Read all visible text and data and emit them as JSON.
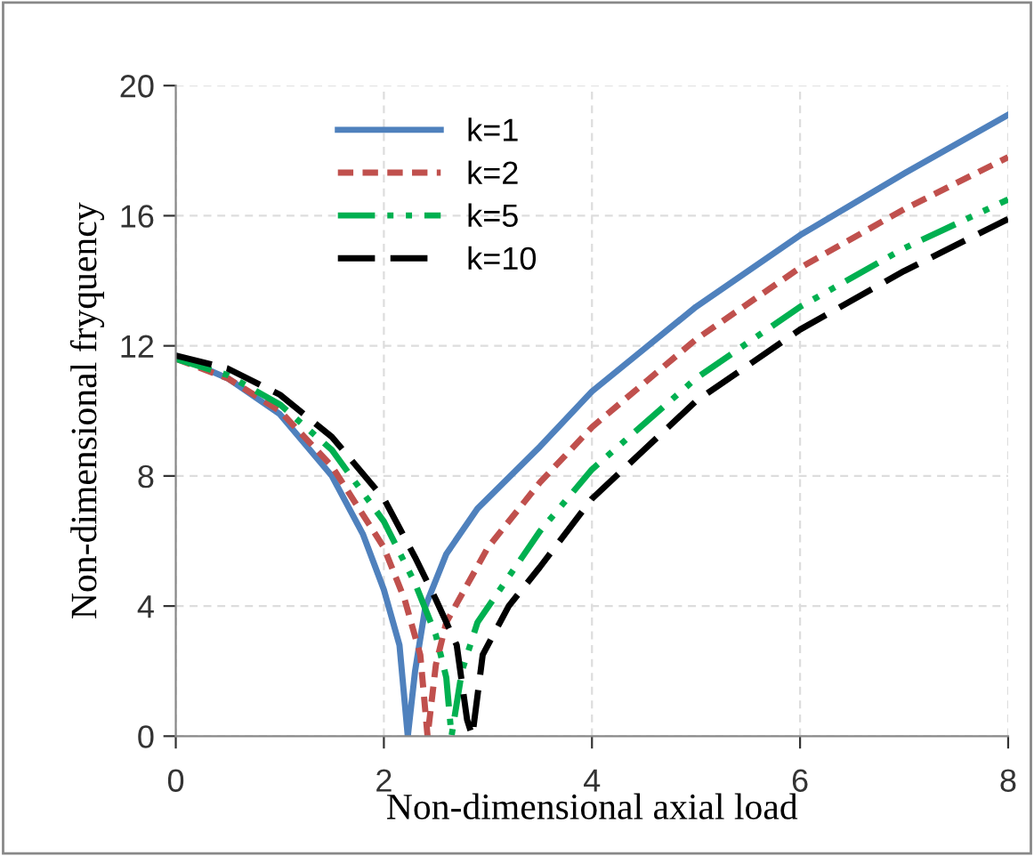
{
  "chart_data": {
    "type": "line",
    "xlabel": "Non-dimensional axial load",
    "ylabel": "Non-dimensional fryquency",
    "xlim": [
      0,
      8
    ],
    "ylim": [
      0,
      20
    ],
    "xticks": [
      0,
      2,
      4,
      6,
      8
    ],
    "yticks": [
      0,
      4,
      8,
      12,
      16,
      20
    ],
    "grid": true,
    "legend": "top left",
    "series": [
      {
        "name": "k=1",
        "color": "#4f81bd",
        "line_style": "solid",
        "x": [
          0,
          0.5,
          1,
          1.5,
          1.8,
          2.0,
          2.15,
          2.23,
          2.3,
          2.4,
          2.6,
          2.9,
          3.5,
          4,
          5,
          6,
          7,
          8
        ],
        "values": [
          11.7,
          11.0,
          9.9,
          8.0,
          6.2,
          4.5,
          2.8,
          0,
          2.0,
          4.0,
          5.6,
          7.0,
          8.9,
          10.6,
          13.2,
          15.4,
          17.3,
          19.1
        ]
      },
      {
        "name": "k=2",
        "color": "#c0504d",
        "line_style": "dotted",
        "x": [
          0,
          0.5,
          1,
          1.5,
          2.0,
          2.2,
          2.35,
          2.42,
          2.5,
          2.6,
          3.0,
          3.5,
          4,
          5,
          6,
          7,
          8
        ],
        "values": [
          11.6,
          11.0,
          10.0,
          8.3,
          5.8,
          4.2,
          2.5,
          0,
          2.2,
          3.5,
          5.8,
          7.8,
          9.5,
          12.2,
          14.4,
          16.2,
          17.8
        ]
      },
      {
        "name": "k=5",
        "color": "#00b050",
        "line_style": "dashdot",
        "x": [
          0,
          0.5,
          1,
          1.5,
          2.0,
          2.3,
          2.5,
          2.6,
          2.65,
          2.75,
          2.9,
          3.5,
          4,
          5,
          6,
          7,
          8
        ],
        "values": [
          11.6,
          11.1,
          10.2,
          8.8,
          6.6,
          4.7,
          3.1,
          1.8,
          0,
          2.0,
          3.5,
          6.3,
          8.2,
          11.0,
          13.2,
          15.0,
          16.5
        ]
      },
      {
        "name": "k=10",
        "color": "#000000",
        "line_style": "dashed",
        "x": [
          0,
          0.5,
          1,
          1.5,
          2.0,
          2.3,
          2.5,
          2.7,
          2.8,
          2.85,
          2.95,
          3.2,
          3.5,
          4,
          5,
          6,
          7,
          8
        ],
        "values": [
          11.7,
          11.3,
          10.5,
          9.2,
          7.3,
          5.5,
          4.2,
          2.8,
          0.5,
          0,
          2.5,
          4.0,
          5.2,
          7.3,
          10.3,
          12.5,
          14.3,
          15.9
        ]
      }
    ]
  }
}
